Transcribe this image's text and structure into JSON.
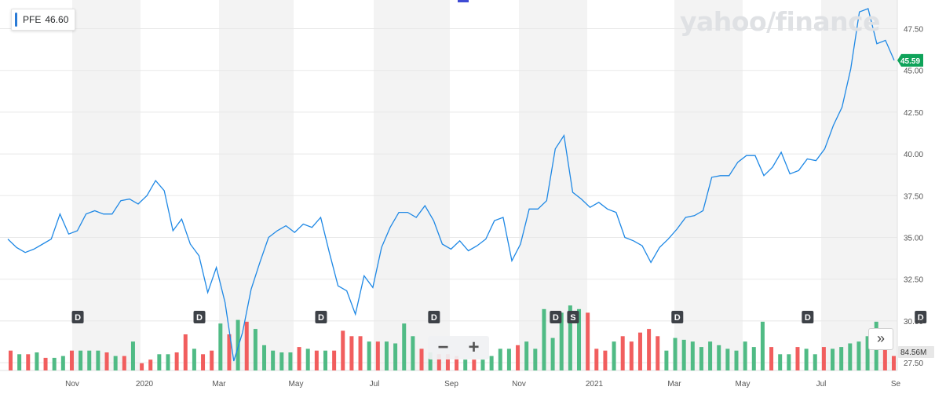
{
  "ticker": {
    "symbol": "PFE",
    "value": "46.60"
  },
  "watermark": "yahoo/finance",
  "current_price_label": "45.59",
  "volume_label": "84.56M",
  "zoom_controls": {
    "minus": "−",
    "plus": "+"
  },
  "expand_icon": "»",
  "colors": {
    "line": "#1e88e5",
    "up": "#47b77e",
    "down": "#f05555",
    "badge": "#0fa35a",
    "band": "#f3f3f3"
  },
  "chart_data": {
    "type": "line",
    "title": "",
    "xlabel": "",
    "ylabel": "",
    "x_tick_labels": [
      "Nov",
      "2020",
      "Mar",
      "May",
      "Jul",
      "Sep",
      "Nov",
      "2021",
      "Mar",
      "May",
      "Jul",
      "Se"
    ],
    "y_tick_labels": [
      "27.50",
      "30.00",
      "32.50",
      "35.00",
      "37.50",
      "40.00",
      "42.50",
      "45.00",
      "47.50"
    ],
    "ylim": [
      27.5,
      48.5
    ],
    "grid": true,
    "price_series": [
      34.9,
      34.4,
      34.1,
      34.3,
      34.6,
      34.9,
      36.4,
      35.2,
      35.4,
      36.4,
      36.6,
      36.4,
      36.4,
      37.2,
      37.3,
      37.0,
      37.5,
      38.4,
      37.8,
      35.4,
      36.1,
      34.6,
      33.9,
      31.7,
      33.2,
      31.1,
      27.6,
      29.3,
      31.9,
      33.5,
      35.0,
      35.4,
      35.7,
      35.3,
      35.8,
      35.6,
      36.2,
      34.1,
      32.1,
      31.8,
      30.4,
      32.7,
      32.0,
      34.4,
      35.6,
      36.5,
      36.5,
      36.2,
      36.9,
      36.0,
      34.6,
      34.3,
      34.8,
      34.2,
      34.5,
      34.9,
      36.0,
      36.2,
      33.6,
      34.6,
      36.7,
      36.7,
      37.2,
      40.3,
      41.1,
      37.7,
      37.3,
      36.8,
      37.1,
      36.7,
      36.5,
      35.0,
      34.8,
      34.5,
      33.5,
      34.4,
      34.9,
      35.5,
      36.2,
      36.3,
      36.6,
      38.6,
      38.7,
      38.7,
      39.5,
      39.9,
      39.9,
      38.7,
      39.2,
      40.1,
      38.8,
      39.0,
      39.7,
      39.6,
      40.3,
      41.7,
      42.8,
      45.1,
      48.5,
      48.7,
      46.6,
      46.8,
      45.6
    ],
    "volume_series": {
      "unit": "relative",
      "values": [
        0.55,
        0.45,
        0.45,
        0.5,
        0.35,
        0.35,
        0.4,
        0.55,
        0.55,
        0.55,
        0.55,
        0.5,
        0.4,
        0.4,
        0.8,
        0.2,
        0.3,
        0.45,
        0.45,
        0.5,
        1.0,
        0.6,
        0.45,
        0.55,
        1.3,
        1.0,
        1.4,
        1.35,
        1.15,
        0.7,
        0.55,
        0.5,
        0.5,
        0.65,
        0.6,
        0.55,
        0.55,
        0.55,
        1.1,
        0.95,
        0.95,
        0.8,
        0.8,
        0.8,
        0.75,
        1.3,
        0.95,
        0.6,
        0.5,
        0.45,
        0.45,
        0.4,
        0.3,
        0.3,
        0.3,
        0.4,
        0.6,
        0.6,
        0.7,
        0.8,
        0.6,
        1.7,
        0.9,
        1.6,
        1.8,
        1.7,
        1.6,
        0.6,
        0.55,
        0.8,
        0.95,
        0.8,
        1.05,
        1.15,
        0.95,
        0.55,
        0.9,
        0.85,
        0.8,
        0.65,
        0.8,
        0.7,
        0.6,
        0.55,
        0.8,
        0.65,
        1.35,
        0.65,
        0.45,
        0.45,
        0.65,
        0.6,
        0.45,
        0.65,
        0.6,
        0.65,
        0.75,
        0.8,
        0.95,
        1.35,
        1.15,
        0.4
      ],
      "up": [
        0,
        1,
        0,
        1,
        0,
        1,
        1,
        0,
        1,
        1,
        1,
        0,
        1,
        0,
        1,
        0,
        0,
        1,
        1,
        0,
        0,
        1,
        0,
        0,
        1,
        0,
        1,
        0,
        1,
        1,
        1,
        1,
        1,
        0,
        1,
        0,
        1,
        0,
        0,
        0,
        0,
        1,
        0,
        1,
        1,
        1,
        1,
        0,
        1,
        0,
        0,
        0,
        1,
        0,
        1,
        1,
        1,
        1,
        0,
        1,
        1,
        1,
        1,
        1,
        1,
        1,
        0,
        0,
        0,
        1,
        0,
        0,
        0,
        0,
        0,
        1,
        1,
        1,
        1,
        1,
        1,
        1,
        1,
        1,
        1,
        1,
        1,
        0,
        1,
        1,
        0,
        1,
        1,
        0,
        1,
        1,
        1,
        1,
        1,
        1,
        0,
        0
      ]
    },
    "events": [
      {
        "label": "D",
        "x_index": 8
      },
      {
        "label": "D",
        "x_index": 22
      },
      {
        "label": "D",
        "x_index": 36
      },
      {
        "label": "D",
        "x_index": 49
      },
      {
        "label": "D",
        "x_index": 63
      },
      {
        "label": "S",
        "x_index": 65
      },
      {
        "label": "D",
        "x_index": 77
      },
      {
        "label": "D",
        "x_index": 92
      },
      {
        "label": "D",
        "x_index": 105
      }
    ]
  }
}
